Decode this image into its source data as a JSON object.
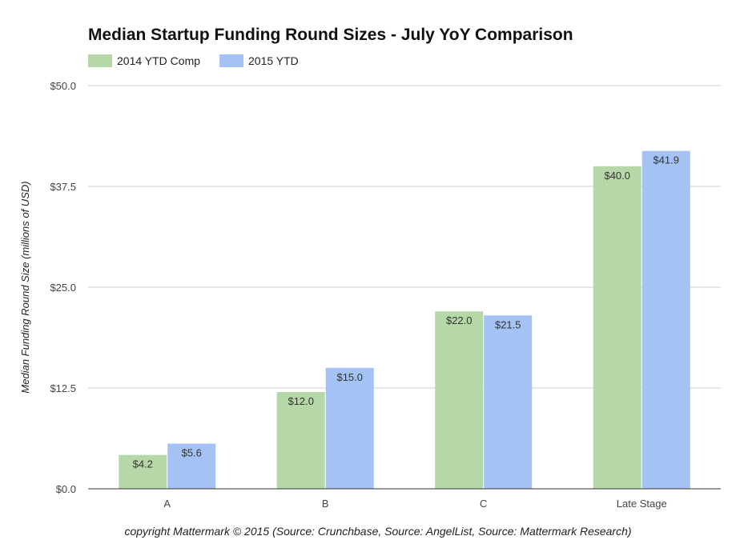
{
  "chart_data": {
    "type": "bar",
    "title": "Median Startup Funding Round Sizes - July YoY Comparison",
    "ylabel": "Median Funding Round Size (millions of USD)",
    "xlabel": "",
    "categories": [
      "A",
      "B",
      "C",
      "Late Stage"
    ],
    "series": [
      {
        "name": "2014 YTD Comp",
        "color": "#b6d7a8",
        "values": [
          4.2,
          12.0,
          22.0,
          40.0
        ],
        "labels": [
          "$4.2",
          "$12.0",
          "$22.0",
          "$40.0"
        ]
      },
      {
        "name": "2015 YTD",
        "color": "#a4c2f4",
        "values": [
          5.6,
          15.0,
          21.5,
          41.9
        ],
        "labels": [
          "$5.6",
          "$15.0",
          "$21.5",
          "$41.9"
        ]
      }
    ],
    "ylim": [
      0,
      50
    ],
    "yticks": [
      0,
      12.5,
      25,
      37.5,
      50
    ],
    "ytick_labels": [
      "$0.0",
      "$12.5",
      "$25.0",
      "$37.5",
      "$50.0"
    ],
    "grid": true,
    "legend_position": "top-left"
  },
  "footer": "copyright Mattermark © 2015 (Source: Crunchbase, Source: AngelList, Source: Mattermark Research)"
}
